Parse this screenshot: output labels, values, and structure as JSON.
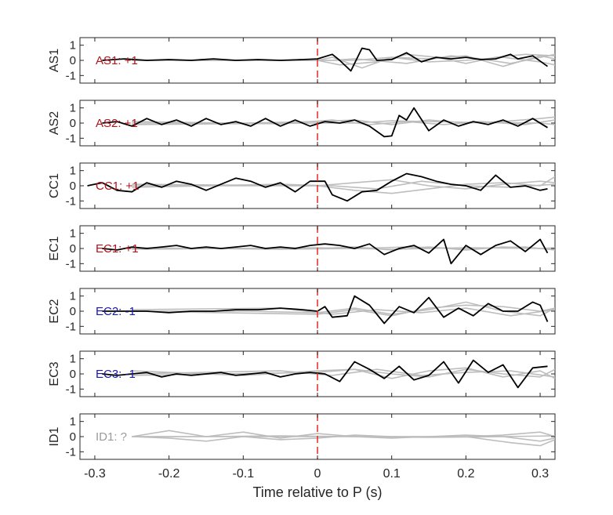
{
  "chart_data": {
    "type": "line",
    "xlabel": "Time relative to P (s)",
    "xlim": [
      -0.32,
      0.32
    ],
    "xticks": [
      -0.3,
      -0.2,
      -0.1,
      0,
      0.1,
      0.2,
      0.3
    ],
    "xtick_labels": [
      "-0.3",
      "-0.2",
      "-0.1",
      "0",
      "0.1",
      "0.2",
      "0.3"
    ],
    "ylim": [
      -1.5,
      1.5
    ],
    "yticks": [
      1,
      0,
      -1
    ],
    "ytick_labels": [
      "1",
      "0",
      "-1"
    ],
    "marker_time": 0,
    "colors": {
      "trace": "#000000",
      "background": "#bdbdbd",
      "marker": "#e8281c",
      "positive": "#b2131b",
      "negative": "#1a1aa6",
      "unknown": "#9a9a9a"
    },
    "panels": [
      {
        "ylabel": "AS1",
        "label": "AS1: +1",
        "label_color": "#b2131b",
        "series": [
          {
            "x": [
              -0.29,
              -0.26,
              -0.23,
              -0.2,
              -0.17,
              -0.14,
              -0.11,
              -0.08,
              -0.05,
              -0.02,
              0,
              0.02,
              0.03,
              0.045,
              0.06,
              0.07,
              0.08,
              0.1,
              0.12,
              0.14,
              0.16,
              0.18,
              0.2,
              0.22,
              0.24,
              0.26,
              0.27,
              0.29,
              0.31
            ],
            "y": [
              0,
              0.1,
              0,
              0.05,
              0,
              0.1,
              0,
              0.05,
              0,
              0.05,
              0.1,
              0.4,
              0,
              -0.7,
              0.8,
              0.7,
              0,
              0.05,
              0.5,
              -0.1,
              0.2,
              0.1,
              0.2,
              0.05,
              0.1,
              0.4,
              0.1,
              0.3,
              -0.4
            ]
          }
        ],
        "background_series": [
          {
            "x": [
              -0.25,
              -0.1,
              0,
              0.03,
              0.08,
              0.12,
              0.16,
              0.2,
              0.24,
              0.28,
              0.32
            ],
            "y": [
              0,
              0,
              0,
              -0.3,
              -0.1,
              0.4,
              0.2,
              -0.2,
              0.2,
              0.4,
              0.3
            ]
          },
          {
            "x": [
              -0.25,
              0,
              0.02,
              0.06,
              0.1,
              0.15,
              0.2,
              0.25,
              0.3,
              0.32
            ],
            "y": [
              0,
              0,
              0.2,
              -0.5,
              0.2,
              0.1,
              0.3,
              -0.4,
              0.3,
              0.1
            ]
          },
          {
            "x": [
              -0.25,
              0.02,
              0.05,
              0.12,
              0.18,
              0.22,
              0.26,
              0.32
            ],
            "y": [
              0,
              0,
              0.1,
              -0.2,
              0.3,
              0.1,
              -0.2,
              0.4
            ]
          },
          {
            "x": [
              -0.25,
              0.05,
              0.1,
              0.15,
              0.2,
              0.25,
              0.3,
              0.32
            ],
            "y": [
              0,
              0,
              0.2,
              -0.1,
              0,
              0.2,
              -0.1,
              -0.3
            ]
          }
        ]
      },
      {
        "ylabel": "AS2",
        "label": "AS2: +1",
        "label_color": "#b2131b",
        "series": [
          {
            "x": [
              -0.29,
              -0.27,
              -0.25,
              -0.23,
              -0.21,
              -0.19,
              -0.17,
              -0.15,
              -0.13,
              -0.11,
              -0.09,
              -0.07,
              -0.05,
              -0.03,
              -0.01,
              0.01,
              0.03,
              0.05,
              0.07,
              0.09,
              0.1,
              0.11,
              0.12,
              0.13,
              0.15,
              0.17,
              0.19,
              0.21,
              0.23,
              0.25,
              0.27,
              0.29,
              0.31
            ],
            "y": [
              0,
              0.1,
              -0.2,
              0.3,
              -0.1,
              0.2,
              -0.2,
              0.3,
              -0.1,
              0.1,
              -0.2,
              0.3,
              -0.2,
              0.2,
              -0.2,
              0.1,
              0,
              0.2,
              -0.2,
              -0.9,
              -0.85,
              0.5,
              0.2,
              1,
              -0.5,
              0.2,
              -0.2,
              0.1,
              -0.1,
              0.2,
              -0.2,
              0.3,
              -0.3
            ]
          }
        ],
        "background_series": [
          {
            "x": [
              -0.25,
              -0.1,
              0,
              0.05,
              0.1,
              0.15,
              0.2,
              0.25,
              0.3,
              0.32
            ],
            "y": [
              0,
              0,
              0.1,
              0.2,
              -0.1,
              0.2,
              0,
              0.1,
              0.3,
              0.4
            ]
          },
          {
            "x": [
              -0.25,
              -0.05,
              0.02,
              0.07,
              0.12,
              0.17,
              0.22,
              0.28,
              0.32
            ],
            "y": [
              0.1,
              -0.05,
              0.2,
              -0.1,
              0.1,
              -0.1,
              0.1,
              -0.1,
              0.2
            ]
          },
          {
            "x": [
              -0.25,
              0,
              0.05,
              0.1,
              0.2,
              0.3,
              0.32
            ],
            "y": [
              -0.1,
              0,
              0,
              0.15,
              0.05,
              0,
              -0.1
            ]
          }
        ]
      },
      {
        "ylabel": "CC1",
        "label": "CC1: +1",
        "label_color": "#b2131b",
        "series": [
          {
            "x": [
              -0.31,
              -0.29,
              -0.27,
              -0.25,
              -0.23,
              -0.21,
              -0.19,
              -0.17,
              -0.15,
              -0.13,
              -0.11,
              -0.09,
              -0.07,
              -0.05,
              -0.03,
              -0.01,
              0.01,
              0.02,
              0.04,
              0.06,
              0.08,
              0.1,
              0.12,
              0.14,
              0.16,
              0.18,
              0.2,
              0.22,
              0.24,
              0.26,
              0.28,
              0.3,
              0.31
            ],
            "y": [
              0,
              0.2,
              -0.3,
              -0.4,
              0.2,
              -0.1,
              0.3,
              0.1,
              -0.3,
              0.1,
              0.5,
              0.3,
              -0.1,
              0.2,
              -0.4,
              0.3,
              0.3,
              -0.6,
              -1,
              -0.4,
              -0.3,
              0.3,
              0.8,
              0.6,
              0.3,
              0.1,
              0,
              -0.3,
              0.7,
              -0.1,
              0,
              -0.3,
              -0.2
            ]
          }
        ],
        "background_series": [
          {
            "x": [
              -0.25,
              -0.1,
              0,
              0.05,
              0.1,
              0.15,
              0.2,
              0.25,
              0.3,
              0.32
            ],
            "y": [
              0,
              0,
              0,
              -0.3,
              -0.5,
              -0.2,
              0.1,
              0.2,
              0,
              0.6
            ]
          },
          {
            "x": [
              -0.25,
              0,
              0.05,
              0.1,
              0.15,
              0.2,
              0.25,
              0.3,
              0.32
            ],
            "y": [
              0.1,
              0,
              0.2,
              0.4,
              0,
              -0.2,
              0.1,
              0.3,
              0.2
            ]
          },
          {
            "x": [
              -0.25,
              -0.05,
              0.02,
              0.08,
              0.14,
              0.2,
              0.26,
              0.32
            ],
            "y": [
              -0.1,
              0.1,
              0,
              -0.2,
              0.3,
              0,
              -0.1,
              0.1
            ]
          }
        ]
      },
      {
        "ylabel": "EC1",
        "label": "EC1: +1",
        "label_color": "#b2131b",
        "series": [
          {
            "x": [
              -0.29,
              -0.27,
              -0.25,
              -0.23,
              -0.21,
              -0.19,
              -0.17,
              -0.15,
              -0.13,
              -0.11,
              -0.09,
              -0.07,
              -0.05,
              -0.03,
              -0.01,
              0.01,
              0.03,
              0.05,
              0.07,
              0.09,
              0.11,
              0.13,
              0.15,
              0.17,
              0.18,
              0.2,
              0.22,
              0.24,
              0.26,
              0.28,
              0.3,
              0.31
            ],
            "y": [
              0,
              -0.1,
              0.1,
              0,
              0.1,
              0.2,
              0,
              0.1,
              0,
              0.1,
              0.2,
              0,
              0.1,
              0,
              0.2,
              0.3,
              0.2,
              0,
              0.3,
              -0.4,
              0,
              0.2,
              -0.3,
              0.6,
              -1,
              0.2,
              -0.4,
              0.2,
              0.5,
              -0.2,
              0.6,
              -0.3
            ]
          }
        ],
        "background_series": [
          {
            "x": [
              -0.25,
              0,
              0.05,
              0.1,
              0.15,
              0.2,
              0.25,
              0.3,
              0.32
            ],
            "y": [
              0,
              0,
              0.1,
              -0.1,
              0.1,
              -0.1,
              0.1,
              0,
              0.05
            ]
          },
          {
            "x": [
              -0.25,
              -0.05,
              0.05,
              0.12,
              0.2,
              0.28,
              0.32
            ],
            "y": [
              0.05,
              -0.05,
              0,
              0.1,
              0,
              0.1,
              -0.1
            ]
          },
          {
            "x": [
              -0.25,
              0,
              0.1,
              0.2,
              0.3,
              0.32
            ],
            "y": [
              -0.05,
              0.05,
              -0.05,
              0.05,
              0,
              -0.05
            ]
          }
        ]
      },
      {
        "ylabel": "EC2",
        "label": "EC2: -1",
        "label_color": "#1a1aa6",
        "series": [
          {
            "x": [
              -0.29,
              -0.26,
              -0.23,
              -0.2,
              -0.17,
              -0.14,
              -0.11,
              -0.08,
              -0.05,
              -0.02,
              0,
              0.01,
              0.02,
              0.04,
              0.05,
              0.07,
              0.09,
              0.11,
              0.13,
              0.15,
              0.17,
              0.19,
              0.21,
              0.23,
              0.25,
              0.27,
              0.29,
              0.3,
              0.31
            ],
            "y": [
              0,
              0,
              0,
              -0.1,
              0,
              0,
              0.1,
              0.1,
              0.2,
              0.1,
              0,
              0.3,
              -0.4,
              -0.3,
              1,
              0.4,
              -0.8,
              0.3,
              -0.1,
              0.9,
              -0.4,
              0.2,
              -0.3,
              0.5,
              0,
              0,
              0.6,
              0.4,
              -0.7
            ]
          }
        ],
        "background_series": [
          {
            "x": [
              -0.25,
              -0.1,
              0,
              0.05,
              0.1,
              0.15,
              0.2,
              0.25,
              0.3,
              0.32
            ],
            "y": [
              0,
              0,
              -0.1,
              0.2,
              -0.2,
              0.1,
              0.6,
              0,
              -0.3,
              0.2
            ]
          },
          {
            "x": [
              -0.25,
              0,
              0.05,
              0.1,
              0.15,
              0.2,
              0.25,
              0.3,
              0.32
            ],
            "y": [
              0,
              -0.2,
              0.1,
              -0.3,
              0.2,
              0.4,
              0.3,
              0,
              0.2
            ]
          },
          {
            "x": [
              -0.25,
              -0.05,
              0.02,
              0.08,
              0.14,
              0.2,
              0.26,
              0.32
            ],
            "y": [
              0.1,
              0.2,
              -0.2,
              0.1,
              -0.1,
              0.2,
              -0.3,
              0.1
            ]
          }
        ]
      },
      {
        "ylabel": "EC3",
        "label": "EC3: -1",
        "label_color": "#1a1aa6",
        "series": [
          {
            "x": [
              -0.29,
              -0.27,
              -0.25,
              -0.23,
              -0.21,
              -0.19,
              -0.17,
              -0.15,
              -0.13,
              -0.11,
              -0.09,
              -0.07,
              -0.05,
              -0.03,
              -0.01,
              0.01,
              0.03,
              0.05,
              0.07,
              0.09,
              0.11,
              0.13,
              0.15,
              0.17,
              0.19,
              0.21,
              0.23,
              0.25,
              0.27,
              0.29,
              0.31
            ],
            "y": [
              0,
              -0.1,
              0,
              0.1,
              -0.2,
              0,
              -0.1,
              0,
              0.1,
              -0.1,
              0,
              0.1,
              -0.2,
              0,
              0.1,
              0,
              -0.5,
              0.8,
              0.3,
              -0.3,
              0.5,
              -0.4,
              -0.1,
              0.8,
              -0.6,
              0.9,
              0.1,
              0.6,
              -0.9,
              0.4,
              0.5
            ]
          }
        ],
        "background_series": [
          {
            "x": [
              -0.25,
              -0.1,
              0,
              0.05,
              0.1,
              0.15,
              0.2,
              0.25,
              0.3,
              0.32
            ],
            "y": [
              0.2,
              -0.1,
              0.2,
              0.3,
              -0.3,
              0.2,
              0.4,
              -0.2,
              0.2,
              -0.3
            ]
          },
          {
            "x": [
              -0.25,
              0,
              0.05,
              0.1,
              0.15,
              0.2,
              0.25,
              0.3,
              0.32
            ],
            "y": [
              -0.1,
              0.1,
              0.3,
              0,
              -0.2,
              0.3,
              0,
              -0.2,
              0.3
            ]
          },
          {
            "x": [
              -0.25,
              -0.05,
              0.02,
              0.08,
              0.14,
              0.2,
              0.26,
              0.32
            ],
            "y": [
              0,
              0.2,
              -0.1,
              0.3,
              -0.1,
              0.1,
              0.2,
              -0.2
            ]
          }
        ]
      },
      {
        "ylabel": "ID1",
        "label": "ID1: ?",
        "label_color": "#9a9a9a",
        "series": [],
        "background_series": [
          {
            "x": [
              -0.25,
              -0.2,
              -0.15,
              -0.1,
              -0.05,
              0,
              0.05,
              0.1,
              0.15,
              0.2,
              0.25,
              0.3,
              0.32
            ],
            "y": [
              0,
              0.4,
              0,
              0.3,
              -0.1,
              0.2,
              0,
              -0.1,
              0,
              0,
              0.1,
              0.3,
              0
            ]
          },
          {
            "x": [
              -0.25,
              -0.2,
              -0.15,
              -0.1,
              -0.05,
              0,
              0.05,
              0.1,
              0.15,
              0.2,
              0.25,
              0.3,
              0.32
            ],
            "y": [
              0,
              -0.1,
              -0.3,
              0,
              -0.2,
              -0.1,
              0.1,
              0,
              0,
              0.1,
              0,
              -0.3,
              -0.1
            ]
          },
          {
            "x": [
              -0.25,
              -0.15,
              -0.05,
              0.05,
              0.15,
              0.25,
              0.32
            ],
            "y": [
              0,
              0,
              0.05,
              0,
              -0.05,
              0,
              0.05
            ]
          },
          {
            "x": [
              -0.25,
              0,
              0.2,
              0.26,
              0.3,
              0.32
            ],
            "y": [
              0,
              0,
              0,
              -0.4,
              -0.6,
              -0.2
            ]
          }
        ]
      }
    ]
  }
}
